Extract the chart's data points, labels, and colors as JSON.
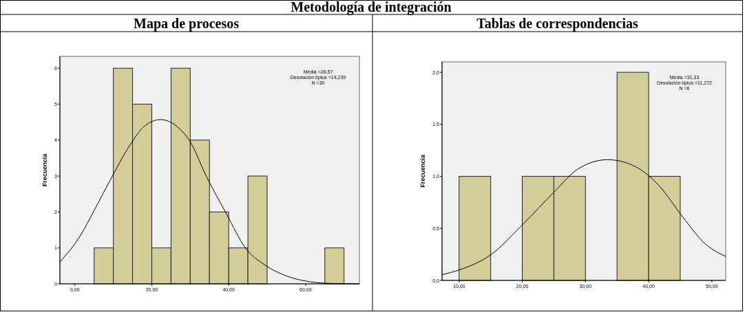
{
  "chart_data": [
    {
      "type": "other",
      "title": "Metodología de integración"
    },
    {
      "type": "histogram",
      "title": "Mapa de procesos",
      "ylabel": "Frecuencia",
      "xlim": [
        -3.9,
        74
      ],
      "ylim": [
        0,
        6.33
      ],
      "xticks": [
        {
          "value": 0,
          "label": "0,00"
        },
        {
          "value": 20,
          "label": "20,00"
        },
        {
          "value": 40,
          "label": "40,00"
        },
        {
          "value": 60,
          "label": "60,00"
        }
      ],
      "yticks": [
        0,
        1,
        2,
        3,
        4,
        5,
        6
      ],
      "annotations": [
        "Media =26,57",
        "Desviación típica =14,239",
        "N =30"
      ],
      "series": [
        {
          "type": "histogram",
          "color": "#d3ce97",
          "bins": [
            5,
            10,
            15,
            20,
            25,
            30,
            35,
            40,
            45,
            50,
            55,
            60,
            65,
            70
          ],
          "values": [
            1,
            6,
            5,
            1,
            6,
            4,
            2,
            1,
            3,
            0,
            0,
            0,
            1
          ]
        },
        {
          "type": "line",
          "color": "#000000",
          "x": [
            -3.9,
            1.4,
            5,
            9.1,
            14.5,
            18.1,
            22.3,
            26.4,
            30,
            34.2,
            39.6,
            44.2,
            49.6,
            55,
            61,
            67,
            74
          ],
          "values": [
            0.61,
            1.34,
            2.04,
            2.87,
            3.89,
            4.39,
            4.57,
            4.39,
            3.95,
            2.99,
            1.91,
            1.02,
            0.51,
            0.22,
            0.06,
            0.01,
            0
          ]
        }
      ]
    },
    {
      "type": "histogram",
      "title": "Tablas de correspondencias",
      "ylabel": "Frecuencia",
      "xlim": [
        7.3,
        52.2
      ],
      "ylim": [
        0,
        2.1
      ],
      "xticks": [
        {
          "value": 10,
          "label": "10,00"
        },
        {
          "value": 20,
          "label": "20,00"
        },
        {
          "value": 30,
          "label": "30,00"
        },
        {
          "value": 40,
          "label": "40,00"
        },
        {
          "value": 50,
          "label": "50,00"
        }
      ],
      "yticks": [
        {
          "value": 0,
          "label": "0,0"
        },
        {
          "value": 0.5,
          "label": "0,5"
        },
        {
          "value": 1,
          "label": "1,0"
        },
        {
          "value": 1.5,
          "label": "1,5"
        },
        {
          "value": 2,
          "label": "2,0"
        }
      ],
      "annotations": [
        "Media =31,33",
        "Desviación típica =11,272",
        "N =6"
      ],
      "series": [
        {
          "type": "histogram",
          "color": "#d3ce97",
          "bins": [
            10,
            15,
            20,
            25,
            30,
            35,
            40,
            45
          ],
          "values": [
            1,
            0,
            1,
            1,
            0,
            2,
            1
          ]
        },
        {
          "type": "line",
          "color": "#000000",
          "x": [
            7.3,
            10,
            15.1,
            19.8,
            25.2,
            28.8,
            33.5,
            38,
            41.5,
            45.4,
            48.8,
            52.2
          ],
          "values": [
            0.055,
            0.1,
            0.25,
            0.52,
            0.86,
            1.07,
            1.16,
            1.09,
            0.92,
            0.61,
            0.36,
            0.23
          ]
        }
      ]
    }
  ]
}
